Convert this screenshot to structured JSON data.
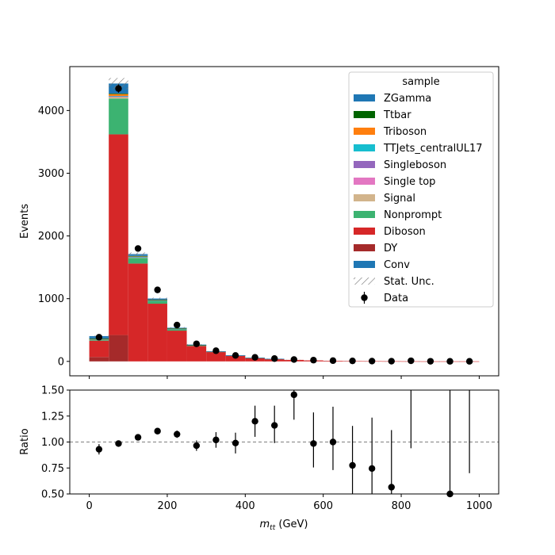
{
  "chart_data": [
    {
      "type": "bar",
      "stacked": true,
      "ylabel": "Events",
      "xlim": [
        -50,
        1050
      ],
      "ylim": [
        -230,
        4700
      ],
      "yticks": [
        0,
        1000,
        2000,
        3000,
        4000
      ],
      "bin_edges": [
        0,
        50,
        100,
        150,
        200,
        250,
        300,
        350,
        400,
        450,
        500,
        550,
        600,
        650,
        700,
        750,
        800,
        850,
        900,
        950,
        1000
      ],
      "legend_title": "sample",
      "legend_position": "top-right",
      "series": [
        {
          "name": "DY",
          "color": "#a52a2a",
          "values": [
            70,
            420,
            0,
            0,
            0,
            0,
            0,
            0,
            0,
            0,
            0,
            0,
            0,
            0,
            0,
            0,
            0,
            0,
            0,
            0
          ]
        },
        {
          "name": "Diboson",
          "color": "#d62728",
          "values": [
            260,
            3200,
            1560,
            920,
            490,
            245,
            150,
            90,
            56,
            40,
            24,
            16,
            10,
            6,
            4,
            3,
            2,
            1,
            1,
            1
          ]
        },
        {
          "name": "Nonprompt",
          "color": "#3cb371",
          "values": [
            20,
            570,
            90,
            45,
            25,
            10,
            5,
            3,
            2,
            1,
            0,
            0,
            0,
            0,
            0,
            0,
            0,
            0,
            0,
            0
          ]
        },
        {
          "name": "Signal",
          "color": "#d2b48c",
          "values": [
            5,
            30,
            10,
            6,
            3,
            2,
            1,
            1,
            0,
            0,
            0,
            0,
            0,
            0,
            0,
            0,
            0,
            0,
            0,
            0
          ]
        },
        {
          "name": "Single top",
          "color": "#e377c2",
          "values": [
            1,
            3,
            2,
            1,
            1,
            0,
            0,
            0,
            0,
            0,
            0,
            0,
            0,
            0,
            0,
            0,
            0,
            0,
            0,
            0
          ]
        },
        {
          "name": "Singleboson",
          "color": "#9467bd",
          "values": [
            1,
            3,
            2,
            1,
            1,
            0,
            0,
            0,
            0,
            0,
            0,
            0,
            0,
            0,
            0,
            0,
            0,
            0,
            0,
            0
          ]
        },
        {
          "name": "TTJets_centralUL17",
          "color": "#17becf",
          "values": [
            2,
            6,
            4,
            2,
            1,
            1,
            0,
            0,
            0,
            0,
            0,
            0,
            0,
            0,
            0,
            0,
            0,
            0,
            0,
            0
          ]
        },
        {
          "name": "Triboson",
          "color": "#ff7f0e",
          "values": [
            2,
            30,
            8,
            4,
            2,
            1,
            1,
            0,
            0,
            0,
            0,
            0,
            0,
            0,
            0,
            0,
            0,
            0,
            0,
            0
          ]
        },
        {
          "name": "Ttbar",
          "color": "#006400",
          "values": [
            2,
            8,
            5,
            3,
            2,
            1,
            0,
            0,
            0,
            0,
            0,
            0,
            0,
            0,
            0,
            0,
            0,
            0,
            0,
            0
          ]
        },
        {
          "name": "ZGamma",
          "color": "#1f77b4",
          "values": [
            25,
            120,
            20,
            15,
            8,
            5,
            3,
            2,
            1,
            1,
            0,
            0,
            0,
            0,
            0,
            0,
            0,
            0,
            0,
            0
          ]
        },
        {
          "name": "Conv",
          "color": "#1f77b4",
          "values": [
            15,
            40,
            10,
            5,
            3,
            2,
            1,
            1,
            0,
            0,
            0,
            0,
            0,
            0,
            0,
            0,
            0,
            0,
            0,
            0
          ]
        }
      ],
      "stat_unc": {
        "name": "Stat. Unc.",
        "relative": [
          0.02,
          0.02,
          0.015,
          0.015,
          0.02,
          0.03,
          0.03,
          0.04,
          0.05,
          0.06,
          0.08,
          0.1,
          0.12,
          0.15,
          0.2,
          0.25,
          0.3,
          0.3,
          0.3,
          0.3
        ]
      },
      "data": {
        "name": "Data",
        "x": [
          25,
          75,
          125,
          175,
          225,
          275,
          325,
          375,
          425,
          475,
          525,
          575,
          625,
          675,
          725,
          775,
          825,
          875,
          925,
          975
        ],
        "y": [
          385,
          4350,
          1800,
          1140,
          580,
          280,
          170,
          95,
          65,
          45,
          30,
          20,
          12,
          8,
          5,
          3,
          10,
          2,
          1,
          1
        ]
      },
      "legend_order": [
        "ZGamma",
        "Ttbar",
        "Triboson",
        "TTJets_centralUL17",
        "Singleboson",
        "Single top",
        "Signal",
        "Nonprompt",
        "Diboson",
        "DY",
        "Conv",
        "Stat. Unc.",
        "Data"
      ]
    },
    {
      "type": "scatter",
      "ylabel": "Ratio",
      "xlabel": "m_tt (GeV)",
      "xlabel_main": "m",
      "xlabel_sub": "tt",
      "xlabel_unit": " (GeV)",
      "xlim": [
        -50,
        1050
      ],
      "ylim": [
        0.5,
        1.5
      ],
      "xticks": [
        0,
        200,
        400,
        600,
        800,
        1000
      ],
      "yticks": [
        "0.50",
        "0.75",
        "1.00",
        "1.25",
        "1.50"
      ],
      "reference_line": 1.0,
      "x": [
        25,
        75,
        125,
        175,
        225,
        275,
        325,
        375,
        425,
        475,
        525,
        575,
        625,
        675,
        725,
        775,
        825,
        875,
        925,
        975
      ],
      "y": [
        0.93,
        0.985,
        1.045,
        1.105,
        1.075,
        0.965,
        1.02,
        0.99,
        1.2,
        1.16,
        1.455,
        0.985,
        1.0,
        0.775,
        0.745,
        0.565,
        null,
        null,
        0.5,
        null
      ],
      "err_lo": [
        0.05,
        0.01,
        0.015,
        0.025,
        0.035,
        0.05,
        0.075,
        0.1,
        0.15,
        0.17,
        0.24,
        0.23,
        0.27,
        0.28,
        0.26,
        0.22,
        0,
        0,
        0,
        0
      ],
      "err_hi": [
        0.05,
        0.01,
        0.015,
        0.025,
        0.035,
        0.05,
        0.075,
        0.1,
        0.15,
        0.19,
        0.05,
        0.3,
        0.34,
        0.38,
        0.49,
        0.55,
        0,
        0,
        0,
        0
      ],
      "bars_only": [
        {
          "x": 825,
          "lo": 0.94,
          "hi": 1.5
        },
        {
          "x": 925,
          "lo": 0.5,
          "hi": 1.5
        },
        {
          "x": 975,
          "lo": 0.7,
          "hi": 1.5
        }
      ]
    }
  ]
}
